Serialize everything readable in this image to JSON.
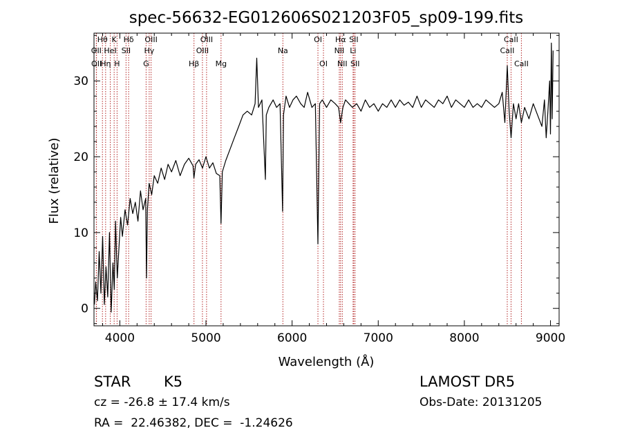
{
  "chart_data": {
    "type": "line",
    "title": "spec-56632-EG012606S021203F05_sp09-199.fits",
    "xlabel": "Wavelength (Å)",
    "ylabel": "Flux (relative)",
    "xlim": [
      3700,
      9100
    ],
    "ylim": [
      -2.3,
      36.3
    ],
    "x_ticks": [
      4000,
      5000,
      6000,
      7000,
      8000,
      9000
    ],
    "y_ticks": [
      0,
      10,
      20,
      30
    ],
    "x_tick_labels": [
      "4000",
      "5000",
      "6000",
      "7000",
      "8000",
      "9000"
    ],
    "y_tick_labels": [
      "0",
      "10",
      "20",
      "30"
    ],
    "grid": false,
    "line_color": "#000000",
    "marker_color": "#b22222",
    "series": [
      {
        "x": [
          3705,
          3720,
          3740,
          3760,
          3780,
          3800,
          3820,
          3840,
          3860,
          3880,
          3900,
          3920,
          3935,
          3950,
          3970,
          3990,
          4010,
          4030,
          4060,
          4090,
          4120,
          4150,
          4180,
          4210,
          4240,
          4270,
          4300,
          4310,
          4320,
          4340,
          4370,
          4400,
          4440,
          4480,
          4520,
          4560,
          4600,
          4650,
          4700,
          4750,
          4800,
          4850,
          4860,
          4880,
          4920,
          4960,
          5000,
          5040,
          5080,
          5120,
          5160,
          5175,
          5190,
          5230,
          5280,
          5330,
          5380,
          5430,
          5480,
          5530,
          5570,
          5590,
          5610,
          5650,
          5690,
          5700,
          5730,
          5780,
          5820,
          5860,
          5890,
          5900,
          5930,
          5970,
          6010,
          6050,
          6100,
          6140,
          6180,
          6230,
          6270,
          6300,
          6320,
          6350,
          6400,
          6450,
          6500,
          6540,
          6563,
          6590,
          6620,
          6660,
          6700,
          6750,
          6800,
          6850,
          6900,
          6950,
          7000,
          7050,
          7100,
          7150,
          7200,
          7250,
          7300,
          7350,
          7400,
          7450,
          7500,
          7550,
          7600,
          7650,
          7700,
          7750,
          7800,
          7850,
          7900,
          7950,
          8000,
          8050,
          8100,
          8150,
          8200,
          8250,
          8300,
          8350,
          8400,
          8440,
          8470,
          8498,
          8520,
          8542,
          8570,
          8600,
          8630,
          8662,
          8700,
          8750,
          8800,
          8850,
          8900,
          8930,
          8950,
          8970,
          8990,
          9000,
          9010,
          9020,
          9030
        ],
        "y": [
          0.5,
          3.5,
          1.0,
          7.5,
          2.0,
          9.5,
          0.5,
          5.5,
          1.5,
          10.0,
          -0.5,
          6.0,
          2.5,
          11.5,
          4.0,
          8.0,
          12.0,
          9.5,
          13.0,
          11.0,
          14.5,
          12.5,
          14.0,
          11.5,
          15.5,
          13.0,
          14.5,
          4.0,
          13.0,
          16.5,
          15.0,
          17.5,
          16.5,
          18.5,
          17.0,
          19.0,
          18.0,
          19.5,
          17.5,
          19.0,
          19.8,
          18.8,
          17.2,
          19.0,
          19.6,
          18.5,
          20.0,
          18.5,
          19.2,
          17.8,
          17.5,
          11.2,
          18.0,
          19.5,
          21.0,
          22.5,
          24.0,
          25.5,
          26.0,
          25.5,
          27.0,
          33.0,
          26.5,
          27.5,
          17.0,
          25.5,
          26.5,
          27.5,
          26.5,
          27.0,
          12.8,
          25.5,
          28.0,
          26.5,
          27.5,
          28.0,
          27.0,
          26.5,
          28.5,
          26.5,
          27.0,
          8.5,
          27.0,
          27.5,
          26.5,
          27.5,
          27.0,
          26.5,
          24.5,
          26.5,
          27.5,
          27.0,
          26.5,
          27.0,
          26.0,
          27.5,
          26.5,
          27.0,
          26.0,
          27.0,
          26.5,
          27.5,
          26.5,
          27.5,
          26.8,
          27.2,
          26.5,
          28.0,
          26.5,
          27.5,
          27.0,
          26.5,
          27.5,
          27.0,
          28.0,
          26.5,
          27.5,
          27.0,
          26.5,
          27.5,
          26.5,
          27.0,
          26.5,
          27.5,
          27.0,
          26.5,
          27.0,
          28.5,
          24.5,
          32.0,
          26.0,
          22.5,
          27.0,
          25.0,
          27.0,
          24.5,
          26.5,
          25.0,
          27.0,
          25.5,
          24.0,
          27.5,
          22.5,
          26.0,
          30.0,
          23.0,
          35.0,
          25.0,
          34.0
        ]
      }
    ],
    "lines": [
      {
        "label": "OII",
        "x": 3727,
        "row": 2
      },
      {
        "label": "OII",
        "x": 3729,
        "row": 3
      },
      {
        "label": "Hθ",
        "x": 3798,
        "row": 1
      },
      {
        "label": "Hη",
        "x": 3835,
        "row": 3
      },
      {
        "label": "HeI",
        "x": 3889,
        "row": 2
      },
      {
        "label": "K",
        "x": 3934,
        "row": 1
      },
      {
        "label": "H",
        "x": 3968,
        "row": 3
      },
      {
        "label": "Hδ",
        "x": 4102,
        "row": 1
      },
      {
        "label": "SII",
        "x": 4072,
        "row": 2
      },
      {
        "label": "G",
        "x": 4305,
        "row": 3
      },
      {
        "label": "Hγ",
        "x": 4341,
        "row": 2
      },
      {
        "label": "OIII",
        "x": 4363,
        "row": 1
      },
      {
        "label": "Hβ",
        "x": 4861,
        "row": 3
      },
      {
        "label": "OIII",
        "x": 4959,
        "row": 2
      },
      {
        "label": "OIII",
        "x": 5007,
        "row": 1
      },
      {
        "label": "Mg",
        "x": 5175,
        "row": 3
      },
      {
        "label": "Na",
        "x": 5893,
        "row": 2
      },
      {
        "label": "OI",
        "x": 6300,
        "row": 1
      },
      {
        "label": "OI",
        "x": 6364,
        "row": 3
      },
      {
        "label": "NII",
        "x": 6548,
        "row": 2
      },
      {
        "label": "Hα",
        "x": 6563,
        "row": 1
      },
      {
        "label": "NII",
        "x": 6583,
        "row": 3
      },
      {
        "label": "SII",
        "x": 6716,
        "row": 1
      },
      {
        "label": "Li",
        "x": 6708,
        "row": 2
      },
      {
        "label": "SII",
        "x": 6731,
        "row": 3
      },
      {
        "label": "CaII",
        "x": 8498,
        "row": 2
      },
      {
        "label": "CaII",
        "x": 8542,
        "row": 1
      },
      {
        "label": "CaII",
        "x": 8662,
        "row": 3
      }
    ]
  },
  "info": {
    "obj_class": "STAR",
    "subclass": "K5",
    "survey": "LAMOST DR5",
    "cz": "cz = -26.8 ± 17.4 km/s",
    "obs_date": "Obs-Date: 20131205",
    "coords": "RA =  22.46382, DEC =  -1.24626"
  }
}
